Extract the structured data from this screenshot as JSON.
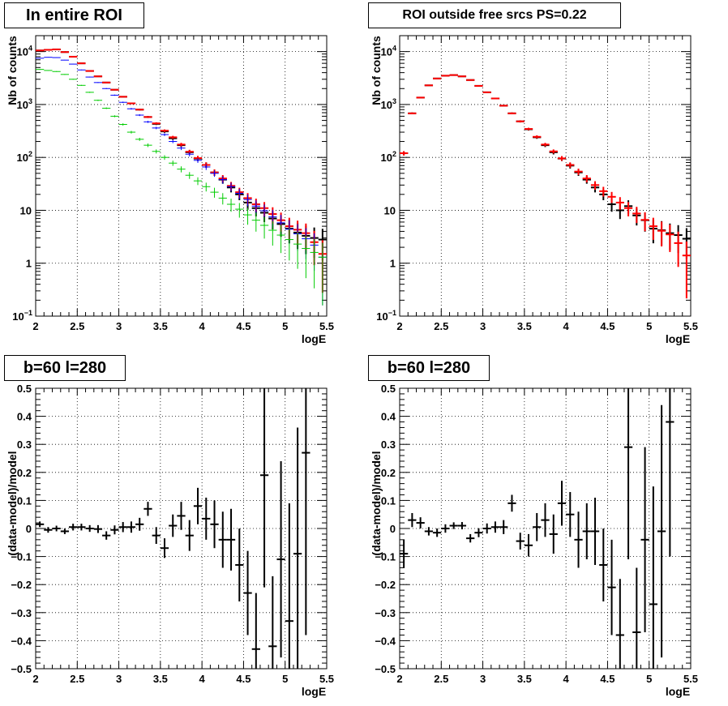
{
  "chart_data": [
    {
      "type": "scatter",
      "title": "In entire ROI",
      "xlabel": "logE",
      "ylabel": "Nb of counts",
      "xlim": [
        2,
        5.5
      ],
      "ylim": [
        0.1,
        20000
      ],
      "yscale": "log",
      "grid": true,
      "legend": "none",
      "xticks": [
        "2",
        "2.5",
        "3",
        "3.5",
        "4",
        "4.5",
        "5",
        "5.5"
      ],
      "yticks": [
        {
          "value": 0.1,
          "base": "10",
          "exp": "−1"
        },
        {
          "value": 1,
          "label": "1"
        },
        {
          "value": 10,
          "label": "10"
        },
        {
          "value": 100,
          "base": "10",
          "exp": "2"
        },
        {
          "value": 1000,
          "base": "10",
          "exp": "3"
        },
        {
          "value": 10000,
          "base": "10",
          "exp": "4"
        }
      ],
      "x": [
        2.05,
        2.15,
        2.25,
        2.35,
        2.45,
        2.55,
        2.65,
        2.75,
        2.85,
        2.95,
        3.05,
        3.15,
        3.25,
        3.35,
        3.45,
        3.55,
        3.65,
        3.75,
        3.85,
        3.95,
        4.05,
        4.15,
        4.25,
        4.35,
        4.45,
        4.55,
        4.65,
        4.75,
        4.85,
        4.95,
        5.05,
        5.15,
        5.25,
        5.35,
        5.45
      ],
      "series": [
        {
          "color": "#000000",
          "values": [
            10500,
            10800,
            11000,
            9800,
            8000,
            6000,
            4300,
            3400,
            2600,
            1900,
            1400,
            1050,
            800,
            580,
            430,
            310,
            230,
            170,
            125,
            95,
            72,
            52,
            38,
            27,
            20,
            14,
            11,
            9,
            7,
            5.5,
            4.5,
            3.8,
            3.3,
            3.0,
            2.8
          ]
        },
        {
          "color": "#ff0000",
          "values": [
            10500,
            10800,
            11000,
            9800,
            8000,
            6000,
            4300,
            3400,
            2600,
            1900,
            1400,
            1050,
            800,
            580,
            440,
            320,
            240,
            175,
            128,
            97,
            72,
            52,
            40,
            29,
            22,
            17,
            13,
            11,
            8.5,
            6.5,
            5,
            4.3,
            3.7,
            2.5,
            1.5
          ]
        },
        {
          "color": "#0000ff",
          "values": [
            7500,
            7800,
            7700,
            6900,
            5800,
            4500,
            3300,
            2600,
            2000,
            1500,
            1100,
            830,
            630,
            470,
            360,
            270,
            200,
            150,
            115,
            88,
            66,
            50,
            38,
            28,
            21,
            16,
            12,
            9.8,
            7.5,
            5.8,
            4.4,
            3.6,
            2.9,
            2.2,
            1.3
          ]
        },
        {
          "color": "#00cc00",
          "values": [
            4600,
            4400,
            4200,
            3700,
            3000,
            2300,
            1700,
            1200,
            850,
            600,
            420,
            300,
            220,
            170,
            130,
            100,
            78,
            60,
            46,
            36,
            28,
            22,
            17,
            13,
            10.5,
            8.2,
            6.5,
            5.2,
            4.2,
            3.4,
            2.8,
            2.3,
            1.9,
            1.6,
            1.3
          ]
        }
      ]
    },
    {
      "type": "scatter",
      "title": "ROI outside free srcs PS=0.22",
      "xlabel": "logE",
      "ylabel": "Nb of counts",
      "xlim": [
        2,
        5.5
      ],
      "ylim": [
        0.1,
        20000
      ],
      "yscale": "log",
      "grid": true,
      "legend": "none",
      "xticks": [
        "2",
        "2.5",
        "3",
        "3.5",
        "4",
        "4.5",
        "5",
        "5.5"
      ],
      "yticks": [
        {
          "value": 0.1,
          "base": "10",
          "exp": "−1"
        },
        {
          "value": 1,
          "label": "1"
        },
        {
          "value": 10,
          "label": "10"
        },
        {
          "value": 100,
          "base": "10",
          "exp": "2"
        },
        {
          "value": 1000,
          "base": "10",
          "exp": "3"
        },
        {
          "value": 10000,
          "base": "10",
          "exp": "4"
        }
      ],
      "x": [
        2.05,
        2.15,
        2.25,
        2.35,
        2.45,
        2.55,
        2.65,
        2.75,
        2.85,
        2.95,
        3.05,
        3.15,
        3.25,
        3.35,
        3.45,
        3.55,
        3.65,
        3.75,
        3.85,
        3.95,
        4.05,
        4.15,
        4.25,
        4.35,
        4.45,
        4.55,
        4.65,
        4.75,
        4.85,
        4.95,
        5.05,
        5.15,
        5.25,
        5.35,
        5.45
      ],
      "series": [
        {
          "color": "#000000",
          "values": [
            120,
            680,
            1350,
            2300,
            3100,
            3500,
            3600,
            3400,
            2900,
            2250,
            1700,
            1300,
            950,
            680,
            480,
            340,
            240,
            170,
            125,
            95,
            70,
            52,
            38,
            27,
            20,
            13,
            10,
            12,
            8,
            6.5,
            4.5,
            4.2,
            3.7,
            3.4,
            2.9
          ]
        },
        {
          "color": "#ff0000",
          "values": [
            120,
            680,
            1350,
            2300,
            3100,
            3500,
            3600,
            3400,
            2900,
            2250,
            1700,
            1300,
            950,
            680,
            480,
            345,
            245,
            175,
            130,
            96,
            72,
            54,
            40,
            30,
            23,
            18,
            14,
            11,
            8.7,
            6.6,
            5.0,
            4.1,
            3.5,
            2.4,
            1.4
          ]
        }
      ]
    },
    {
      "type": "scatter",
      "title": "b=60 l=280",
      "xlabel": "logE",
      "ylabel": "(data-model)/model",
      "xlim": [
        2,
        5.5
      ],
      "ylim": [
        -0.5,
        0.5
      ],
      "grid": true,
      "legend": "none",
      "xticks": [
        "2",
        "2.5",
        "3",
        "3.5",
        "4",
        "4.5",
        "5",
        "5.5"
      ],
      "yticks": [
        "−0.5",
        "−0.4",
        "−0.3",
        "−0.2",
        "−0.1",
        "0",
        "0.1",
        "0.2",
        "0.3",
        "0.4",
        "0.5"
      ],
      "x": [
        2.05,
        2.15,
        2.25,
        2.35,
        2.45,
        2.55,
        2.65,
        2.75,
        2.85,
        2.95,
        3.05,
        3.15,
        3.25,
        3.35,
        3.45,
        3.55,
        3.65,
        3.75,
        3.85,
        3.95,
        4.05,
        4.15,
        4.25,
        4.35,
        4.45,
        4.55,
        4.65,
        4.75,
        4.85,
        4.95,
        5.05,
        5.15,
        5.25
      ],
      "series": [
        {
          "color": "#000000",
          "values": [
            0.015,
            -0.005,
            0.0,
            -0.01,
            0.005,
            0.005,
            0.0,
            -0.002,
            -0.025,
            -0.005,
            0.005,
            0.005,
            0.015,
            0.07,
            -0.025,
            -0.07,
            0.01,
            0.045,
            -0.025,
            0.08,
            0.035,
            0.015,
            -0.04,
            -0.04,
            -0.13,
            -0.23,
            -0.43,
            0.19,
            -0.42,
            -0.11,
            -0.33,
            -0.09,
            0.27
          ],
          "errors": [
            0.01,
            0.01,
            0.01,
            0.01,
            0.012,
            0.012,
            0.012,
            0.014,
            0.015,
            0.016,
            0.018,
            0.02,
            0.023,
            0.025,
            0.03,
            0.035,
            0.04,
            0.05,
            0.055,
            0.065,
            0.075,
            0.085,
            0.1,
            0.11,
            0.13,
            0.15,
            0.2,
            0.4,
            0.25,
            0.35,
            0.42,
            0.45,
            0.65
          ]
        }
      ]
    },
    {
      "type": "scatter",
      "title": "b=60 l=280",
      "xlabel": "logE",
      "ylabel": "(data-model)/model",
      "xlim": [
        2,
        5.5
      ],
      "ylim": [
        -0.5,
        0.5
      ],
      "grid": true,
      "legend": "none",
      "xticks": [
        "2",
        "2.5",
        "3",
        "3.5",
        "4",
        "4.5",
        "5",
        "5.5"
      ],
      "yticks": [
        "−0.5",
        "−0.4",
        "−0.3",
        "−0.2",
        "−0.1",
        "0",
        "0.1",
        "0.2",
        "0.3",
        "0.4",
        "0.5"
      ],
      "x": [
        2.05,
        2.15,
        2.25,
        2.35,
        2.45,
        2.55,
        2.65,
        2.75,
        2.85,
        2.95,
        3.05,
        3.15,
        3.25,
        3.35,
        3.45,
        3.55,
        3.65,
        3.75,
        3.85,
        3.95,
        4.05,
        4.15,
        4.25,
        4.35,
        4.45,
        4.55,
        4.65,
        4.75,
        4.85,
        4.95,
        5.05,
        5.15,
        5.25
      ],
      "series": [
        {
          "color": "#000000",
          "values": [
            -0.09,
            0.03,
            0.02,
            -0.01,
            -0.015,
            0.0,
            0.01,
            0.01,
            -0.035,
            -0.015,
            0.0,
            0.005,
            0.005,
            0.09,
            -0.045,
            -0.06,
            0.005,
            0.03,
            -0.02,
            0.09,
            0.05,
            -0.04,
            -0.01,
            -0.01,
            -0.13,
            -0.21,
            -0.38,
            0.29,
            -0.37,
            -0.04,
            -0.27,
            -0.01,
            0.38
          ],
          "errors": [
            0.05,
            0.025,
            0.02,
            0.015,
            0.015,
            0.015,
            0.012,
            0.013,
            0.015,
            0.016,
            0.018,
            0.02,
            0.025,
            0.03,
            0.03,
            0.04,
            0.05,
            0.06,
            0.07,
            0.08,
            0.08,
            0.1,
            0.1,
            0.12,
            0.13,
            0.17,
            0.2,
            0.4,
            0.23,
            0.33,
            0.42,
            0.45,
            0.48
          ]
        }
      ]
    }
  ]
}
